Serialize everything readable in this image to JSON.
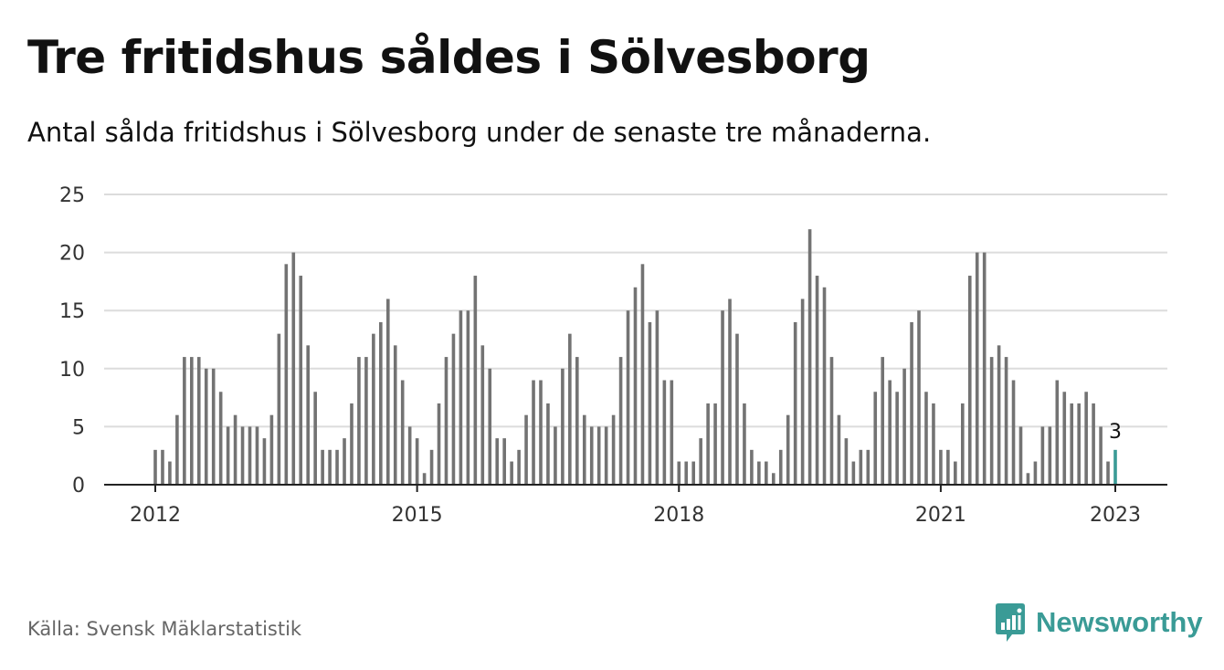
{
  "title": "Tre fritidshus såldes i Sölvesborg",
  "subtitle": "Antal sålda fritidshus i Sölvesborg under de senaste tre månaderna.",
  "source": "Källa: Svensk Mäklarstatistik",
  "brand": {
    "name": "Newsworthy",
    "color": "#3a9b96",
    "icon": "newsworthy-logo-icon"
  },
  "chart_data": {
    "type": "bar",
    "title": "Tre fritidshus såldes i Sölvesborg",
    "subtitle": "Antal sålda fritidshus i Sölvesborg under de senaste tre månaderna.",
    "xlabel": "",
    "ylabel": "",
    "ylim": [
      0,
      25
    ],
    "yticks": [
      0,
      5,
      10,
      15,
      20,
      25
    ],
    "x_start": "2012-01",
    "x_end": "2023-01",
    "xticks": [
      "2012",
      "2015",
      "2018",
      "2021",
      "2023"
    ],
    "xtick_positions": [
      "2012-01",
      "2015-01",
      "2018-01",
      "2021-01",
      "2023-01"
    ],
    "grid": true,
    "bar_color": "#737373",
    "highlight_color": "#3a9b96",
    "highlight_label": "3",
    "x": [
      "2012-01",
      "2012-02",
      "2012-03",
      "2012-04",
      "2012-05",
      "2012-06",
      "2012-07",
      "2012-08",
      "2012-09",
      "2012-10",
      "2012-11",
      "2012-12",
      "2013-01",
      "2013-02",
      "2013-03",
      "2013-04",
      "2013-05",
      "2013-06",
      "2013-07",
      "2013-08",
      "2013-09",
      "2013-10",
      "2013-11",
      "2013-12",
      "2014-01",
      "2014-02",
      "2014-03",
      "2014-04",
      "2014-05",
      "2014-06",
      "2014-07",
      "2014-08",
      "2014-09",
      "2014-10",
      "2014-11",
      "2014-12",
      "2015-01",
      "2015-02",
      "2015-03",
      "2015-04",
      "2015-05",
      "2015-06",
      "2015-07",
      "2015-08",
      "2015-09",
      "2015-10",
      "2015-11",
      "2015-12",
      "2016-01",
      "2016-02",
      "2016-03",
      "2016-04",
      "2016-05",
      "2016-06",
      "2016-07",
      "2016-08",
      "2016-09",
      "2016-10",
      "2016-11",
      "2016-12",
      "2017-01",
      "2017-02",
      "2017-03",
      "2017-04",
      "2017-05",
      "2017-06",
      "2017-07",
      "2017-08",
      "2017-09",
      "2017-10",
      "2017-11",
      "2017-12",
      "2018-01",
      "2018-02",
      "2018-03",
      "2018-04",
      "2018-05",
      "2018-06",
      "2018-07",
      "2018-08",
      "2018-09",
      "2018-10",
      "2018-11",
      "2018-12",
      "2019-01",
      "2019-02",
      "2019-03",
      "2019-04",
      "2019-05",
      "2019-06",
      "2019-07",
      "2019-08",
      "2019-09",
      "2019-10",
      "2019-11",
      "2019-12",
      "2020-01",
      "2020-02",
      "2020-03",
      "2020-04",
      "2020-05",
      "2020-06",
      "2020-07",
      "2020-08",
      "2020-09",
      "2020-10",
      "2020-11",
      "2020-12",
      "2021-01",
      "2021-02",
      "2021-03",
      "2021-04",
      "2021-05",
      "2021-06",
      "2021-07",
      "2021-08",
      "2021-09",
      "2021-10",
      "2021-11",
      "2021-12",
      "2022-01",
      "2022-02",
      "2022-03",
      "2022-04",
      "2022-05",
      "2022-06",
      "2022-07",
      "2022-08",
      "2022-09",
      "2022-10",
      "2022-11",
      "2022-12",
      "2023-01"
    ],
    "values": [
      3,
      3,
      2,
      6,
      11,
      11,
      11,
      10,
      10,
      8,
      5,
      6,
      5,
      5,
      5,
      4,
      6,
      13,
      19,
      20,
      18,
      12,
      8,
      3,
      3,
      3,
      4,
      7,
      11,
      11,
      13,
      14,
      16,
      12,
      9,
      5,
      4,
      1,
      3,
      7,
      11,
      13,
      15,
      15,
      18,
      12,
      10,
      4,
      4,
      2,
      3,
      6,
      9,
      9,
      7,
      5,
      10,
      13,
      11,
      6,
      5,
      5,
      5,
      6,
      11,
      15,
      17,
      19,
      14,
      15,
      9,
      9,
      2,
      2,
      2,
      4,
      7,
      7,
      15,
      16,
      13,
      7,
      3,
      2,
      2,
      1,
      3,
      6,
      14,
      16,
      22,
      18,
      17,
      11,
      6,
      4,
      2,
      3,
      3,
      8,
      11,
      9,
      8,
      10,
      14,
      15,
      8,
      7,
      3,
      3,
      2,
      7,
      18,
      20,
      20,
      11,
      12,
      11,
      9,
      5,
      1,
      2,
      5,
      5,
      9,
      8,
      7,
      7,
      8,
      7,
      5,
      2,
      3
    ]
  }
}
